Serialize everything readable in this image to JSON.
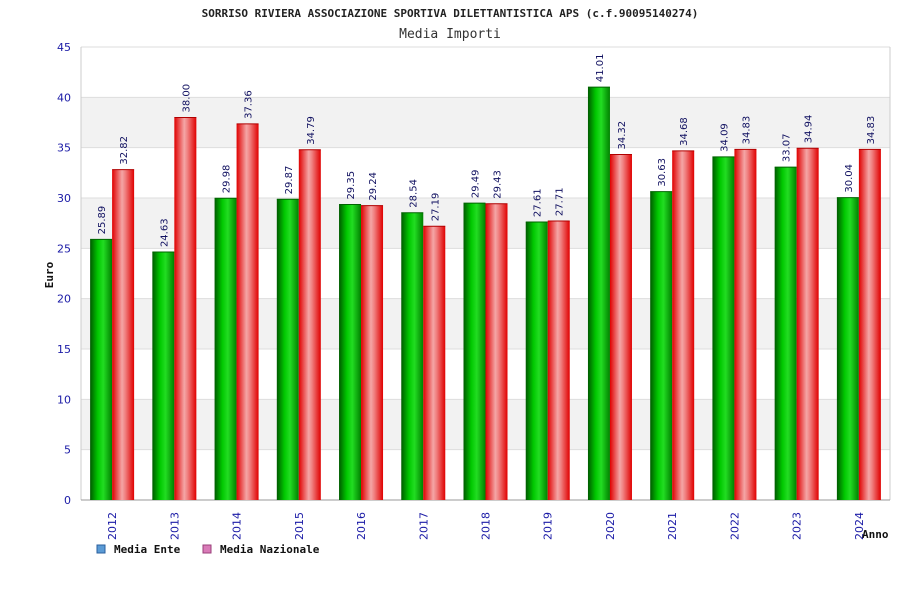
{
  "chart_data": {
    "type": "bar",
    "title": "SORRISO RIVIERA ASSOCIAZIONE SPORTIVA DILETTANTISTICA APS (c.f.90095140274)",
    "subtitle": "Media Importi",
    "xlabel": "Anno",
    "ylabel": "Euro",
    "ylim": [
      0,
      45
    ],
    "yticks": [
      "0",
      "5",
      "10",
      "15",
      "20",
      "25",
      "30",
      "35",
      "40",
      "45"
    ],
    "categories": [
      "2012",
      "2013",
      "2014",
      "2015",
      "2016",
      "2017",
      "2018",
      "2019",
      "2020",
      "2021",
      "2022",
      "2023",
      "2024"
    ],
    "series": [
      {
        "name": "Media Ente",
        "values": [
          25.89,
          24.63,
          29.98,
          29.87,
          29.35,
          28.54,
          29.49,
          27.61,
          41.01,
          30.63,
          34.09,
          33.07,
          30.04
        ],
        "labels": [
          "25.89",
          "24.63",
          "29.98",
          "29.87",
          "29.35",
          "28.54",
          "29.49",
          "27.61",
          "41.01",
          "30.63",
          "34.09",
          "33.07",
          "30.04"
        ]
      },
      {
        "name": "Media Nazionale",
        "values": [
          32.82,
          38.0,
          37.36,
          34.79,
          29.24,
          27.19,
          29.43,
          27.71,
          34.32,
          34.68,
          34.83,
          34.94,
          34.83
        ],
        "labels": [
          "32.82",
          "38.00",
          "37.36",
          "34.79",
          "29.24",
          "27.19",
          "29.43",
          "27.71",
          "34.32",
          "34.68",
          "34.83",
          "34.94",
          "34.83"
        ]
      }
    ],
    "grid": true,
    "legend_position": "bottom-left",
    "colors": {
      "ente": "#00b000",
      "ente_dark": "#006400",
      "nazionale": "#ee1111",
      "nazionale_light": "#f7b0b0",
      "legend_ente": "#5b9bd5",
      "legend_nazionale": "#d97bb8",
      "band": "#f2f2f2",
      "grid": "#dddddd",
      "axis": "#cccccc"
    }
  }
}
